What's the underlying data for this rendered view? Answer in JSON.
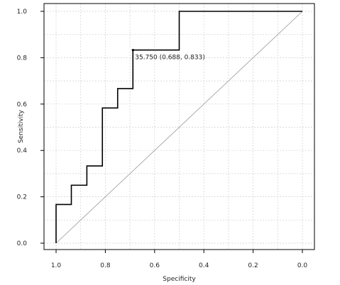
{
  "chart_data": {
    "type": "line",
    "title": "",
    "xlabel": "Specificity",
    "ylabel": "Sensitivity",
    "xlim": [
      1.0,
      0.0
    ],
    "ylim": [
      0.0,
      1.0
    ],
    "x_reversed": true,
    "grid": true,
    "x_ticks": [
      1.0,
      0.8,
      0.6,
      0.4,
      0.2,
      0.0
    ],
    "x_tick_labels": [
      "1.0",
      "0.8",
      "0.6",
      "0.4",
      "0.2",
      "0.0"
    ],
    "y_ticks": [
      0.0,
      0.2,
      0.4,
      0.6,
      0.8,
      1.0
    ],
    "y_tick_labels": [
      "0.0",
      "0.2",
      "0.4",
      "0.6",
      "0.8",
      "1.0"
    ],
    "series": [
      {
        "style": "step",
        "color": "#000000",
        "points": [
          [
            1.0,
            0.0
          ],
          [
            1.0,
            0.167
          ],
          [
            0.938,
            0.167
          ],
          [
            0.938,
            0.25
          ],
          [
            0.875,
            0.25
          ],
          [
            0.875,
            0.333
          ],
          [
            0.812,
            0.333
          ],
          [
            0.812,
            0.583
          ],
          [
            0.75,
            0.583
          ],
          [
            0.75,
            0.667
          ],
          [
            0.688,
            0.667
          ],
          [
            0.688,
            0.833
          ],
          [
            0.5,
            0.833
          ],
          [
            0.5,
            1.0
          ],
          [
            0.0,
            1.0
          ]
        ]
      }
    ],
    "reference_line": {
      "from": [
        1.0,
        0.0
      ],
      "to": [
        0.0,
        1.0
      ],
      "color": "#9a9a9a"
    },
    "annotations": [
      {
        "text": "35.750 (0.688, 0.833)",
        "x": 0.688,
        "y": 0.833
      }
    ]
  }
}
